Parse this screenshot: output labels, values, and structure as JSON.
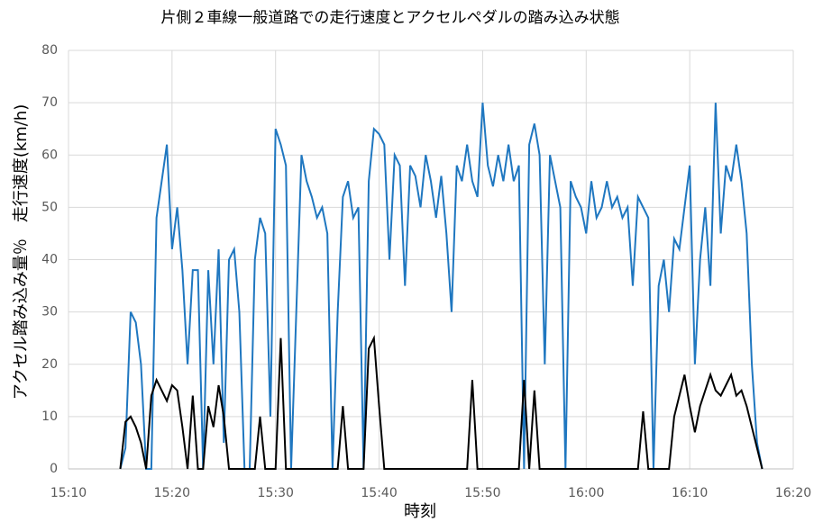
{
  "chart_data": {
    "type": "line",
    "title": "片側２車線一般道路での走行速度とアクセルペダルの踏み込み状態",
    "y_label": "アクセル踏み込み量％　走行速度(km/h)",
    "x_label": "時刻",
    "x": [
      915,
      915.5,
      916,
      916.5,
      917,
      917.5,
      918,
      918.5,
      919,
      919.5,
      920,
      920.5,
      921,
      921.5,
      922,
      922.5,
      923,
      923.5,
      924,
      924.5,
      925,
      925.5,
      926,
      926.5,
      927,
      927.5,
      928,
      928.5,
      929,
      929.5,
      930,
      930.5,
      931,
      931.5,
      932,
      932.5,
      933,
      933.5,
      934,
      934.5,
      935,
      935.5,
      936,
      936.5,
      937,
      937.5,
      938,
      938.5,
      939,
      939.5,
      940,
      940.5,
      941,
      941.5,
      942,
      942.5,
      943,
      943.5,
      944,
      944.5,
      945,
      945.5,
      946,
      946.5,
      947,
      947.5,
      948,
      948.5,
      949,
      949.5,
      950,
      950.5,
      951,
      951.5,
      952,
      952.5,
      953,
      953.5,
      954,
      954.5,
      955,
      955.5,
      956,
      956.5,
      957,
      957.5,
      958,
      958.5,
      959,
      959.5,
      960,
      960.5,
      961,
      961.5,
      962,
      962.5,
      963,
      963.5,
      964,
      964.5,
      965,
      965.5,
      966,
      966.5,
      967,
      967.5,
      968,
      968.5,
      969,
      969.5,
      970,
      970.5,
      971,
      971.5,
      972,
      972.5,
      973,
      973.5,
      974,
      974.5,
      975,
      975.5,
      976,
      976.5,
      977
    ],
    "series": [
      {
        "color": "#1f77c0",
        "values": [
          0,
          4,
          30,
          28,
          20,
          0,
          0,
          48,
          55,
          62,
          42,
          50,
          38,
          20,
          38,
          38,
          0,
          38,
          20,
          42,
          5,
          40,
          42,
          30,
          0,
          0,
          40,
          48,
          45,
          10,
          65,
          62,
          58,
          0,
          30,
          60,
          55,
          52,
          48,
          50,
          45,
          0,
          30,
          52,
          55,
          48,
          50,
          0,
          55,
          65,
          64,
          62,
          40,
          60,
          58,
          35,
          58,
          56,
          50,
          60,
          55,
          48,
          56,
          45,
          30,
          58,
          55,
          62,
          55,
          52,
          70,
          58,
          54,
          60,
          55,
          62,
          55,
          58,
          0,
          62,
          66,
          60,
          20,
          60,
          55,
          50,
          0,
          55,
          52,
          50,
          45,
          55,
          48,
          50,
          55,
          50,
          52,
          48,
          50,
          35,
          52,
          50,
          48,
          0,
          35,
          40,
          30,
          44,
          42,
          50,
          58,
          20,
          40,
          50,
          35,
          70,
          45,
          58,
          55,
          62,
          55,
          45,
          20,
          5,
          0
        ]
      },
      {
        "color": "#000000",
        "values": [
          0,
          9,
          10,
          8,
          5,
          0,
          14,
          17,
          15,
          13,
          16,
          15,
          8,
          0,
          14,
          0,
          0,
          12,
          8,
          16,
          10,
          0,
          0,
          0,
          0,
          0,
          0,
          10,
          0,
          0,
          0,
          25,
          0,
          0,
          0,
          0,
          0,
          0,
          0,
          0,
          0,
          0,
          0,
          12,
          0,
          0,
          0,
          0,
          23,
          25,
          12,
          0,
          0,
          0,
          0,
          0,
          0,
          0,
          0,
          0,
          0,
          0,
          0,
          0,
          0,
          0,
          0,
          0,
          17,
          0,
          0,
          0,
          0,
          0,
          0,
          0,
          0,
          0,
          17,
          0,
          15,
          0,
          0,
          0,
          0,
          0,
          0,
          0,
          0,
          0,
          0,
          0,
          0,
          0,
          0,
          0,
          0,
          0,
          0,
          0,
          0,
          11,
          0,
          0,
          0,
          0,
          0,
          10,
          14,
          18,
          12,
          7,
          12,
          15,
          18,
          15,
          14,
          16,
          18,
          14,
          15,
          12,
          8,
          4,
          0
        ]
      }
    ],
    "xlim": [
      910,
      980
    ],
    "xticks": [
      {
        "value": 910,
        "label": "15:10"
      },
      {
        "value": 920,
        "label": "15:20"
      },
      {
        "value": 930,
        "label": "15:30"
      },
      {
        "value": 940,
        "label": "15:40"
      },
      {
        "value": 950,
        "label": "15:50"
      },
      {
        "value": 960,
        "label": "16:00"
      },
      {
        "value": 970,
        "label": "16:10"
      },
      {
        "value": 980,
        "label": "16:20"
      }
    ],
    "ylim": [
      0,
      80
    ],
    "yticks": [
      0,
      10,
      20,
      30,
      40,
      50,
      60,
      70,
      80
    ],
    "grid": true
  }
}
